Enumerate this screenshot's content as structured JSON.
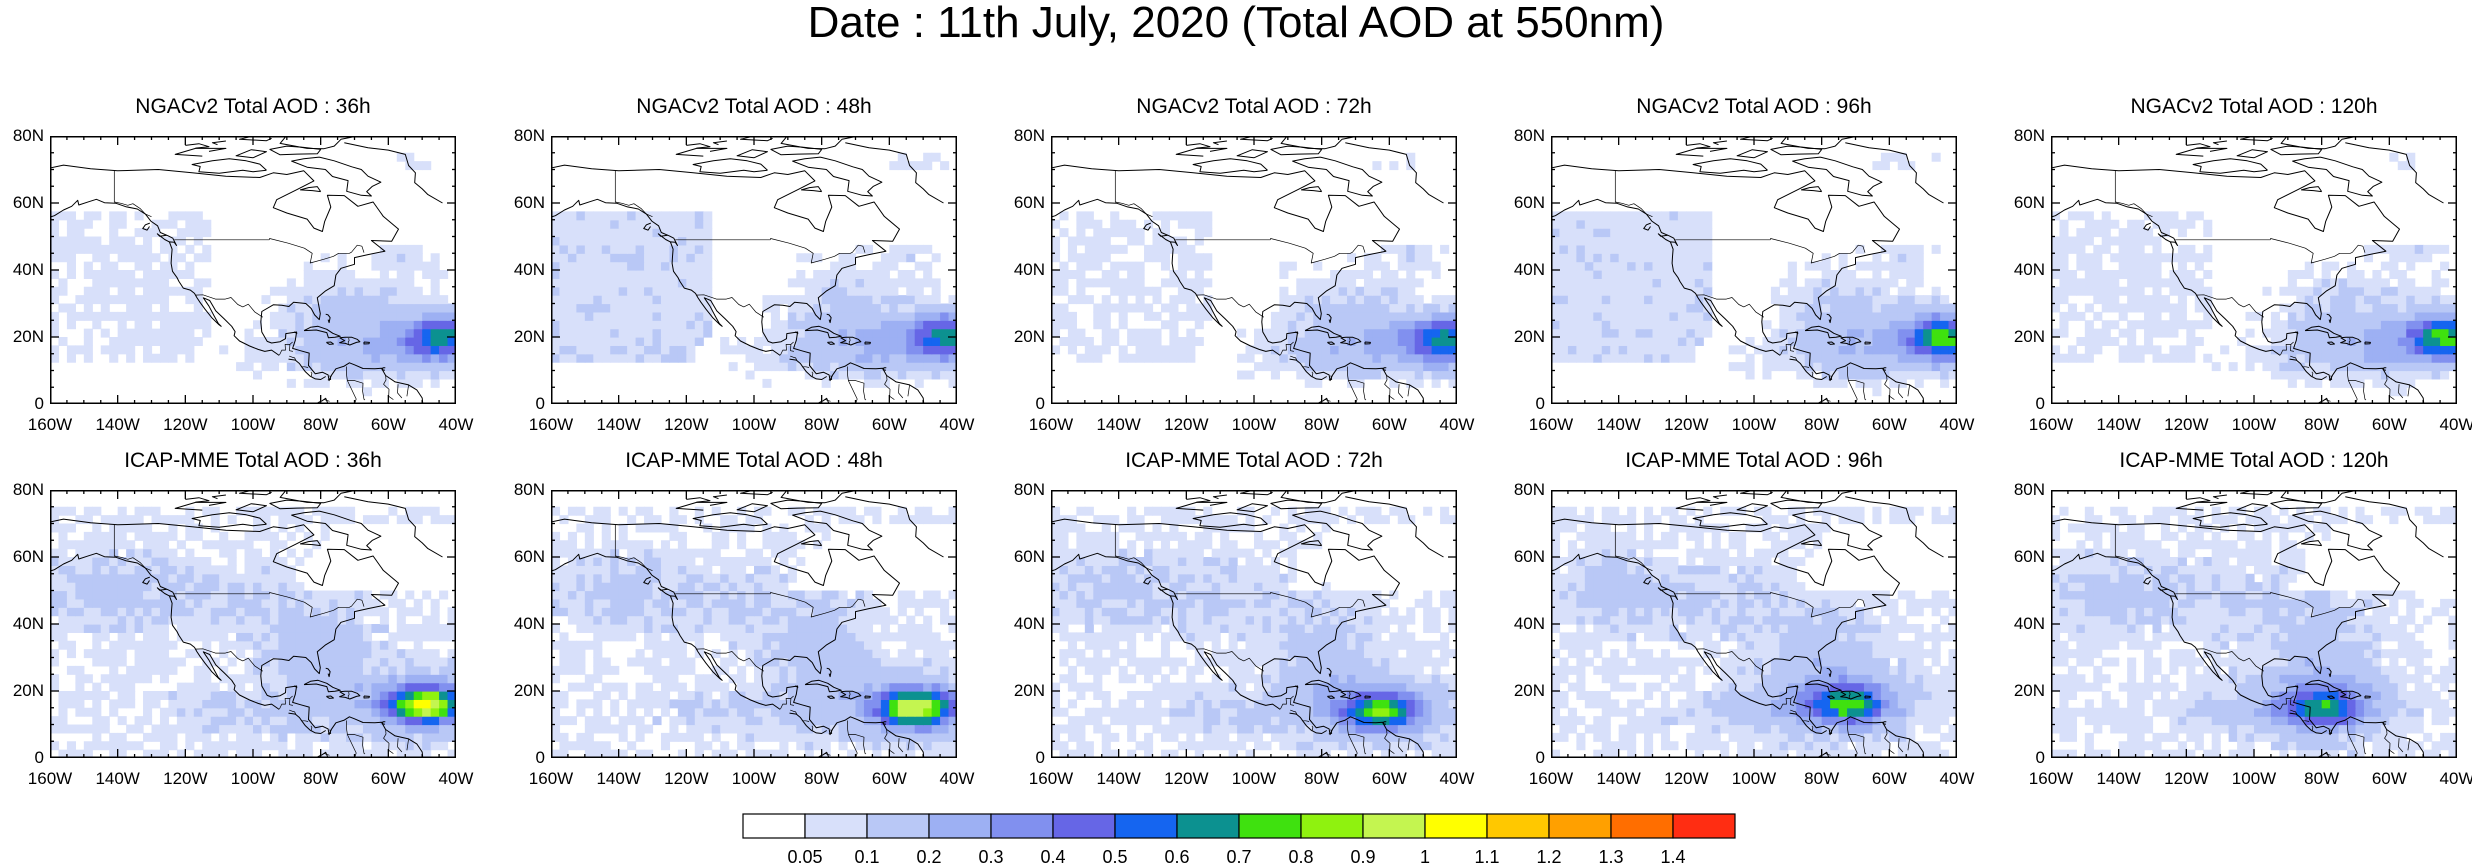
{
  "title": "Date : 11th July, 2020 (Total AOD at 550nm)",
  "lat_ticks": [
    "80N",
    "60N",
    "40N",
    "20N",
    "0"
  ],
  "lon_ticks": [
    "160W",
    "140W",
    "120W",
    "100W",
    "80W",
    "60W",
    "40W"
  ],
  "map_extent": {
    "lon": [
      -160,
      -40
    ],
    "lat": [
      0,
      80
    ]
  },
  "rows": [
    {
      "model": "NGACv2",
      "panels": [
        {
          "title": "NGACv2 Total AOD : 36h",
          "lead_hours": 36,
          "peak_aod": 0.7,
          "peak_center": [
            -42,
            20
          ]
        },
        {
          "title": "NGACv2 Total AOD : 48h",
          "lead_hours": 48,
          "peak_aod": 0.7,
          "peak_center": [
            -41,
            20
          ]
        },
        {
          "title": "NGACv2 Total AOD : 72h",
          "lead_hours": 72,
          "peak_aod": 0.7,
          "peak_center": [
            -42,
            19
          ]
        },
        {
          "title": "NGACv2 Total AOD : 96h",
          "lead_hours": 96,
          "peak_aod": 0.8,
          "peak_center": [
            -42,
            20
          ]
        },
        {
          "title": "NGACv2 Total AOD : 120h",
          "lead_hours": 120,
          "peak_aod": 0.8,
          "peak_center": [
            -42,
            20
          ]
        }
      ]
    },
    {
      "model": "ICAP-MME",
      "panels": [
        {
          "title": "ICAP-MME Total AOD : 36h",
          "lead_hours": 36,
          "peak_aod": 0.9,
          "peak_center": [
            -49,
            16
          ]
        },
        {
          "title": "ICAP-MME Total AOD : 48h",
          "lead_hours": 48,
          "peak_aod": 0.9,
          "peak_center": [
            -52,
            15
          ]
        },
        {
          "title": "ICAP-MME Total AOD : 72h",
          "lead_hours": 72,
          "peak_aod": 0.7,
          "peak_center": [
            -62,
            14
          ]
        },
        {
          "title": "ICAP-MME Total AOD : 96h",
          "lead_hours": 96,
          "peak_aod": 0.6,
          "peak_center": [
            -72,
            16
          ]
        },
        {
          "title": "ICAP-MME Total AOD : 120h",
          "lead_hours": 120,
          "peak_aod": 0.5,
          "peak_center": [
            -79,
            15
          ]
        }
      ]
    }
  ],
  "colorbar": {
    "labels": [
      "0.05",
      "0.1",
      "0.2",
      "0.3",
      "0.4",
      "0.5",
      "0.6",
      "0.7",
      "0.8",
      "0.9",
      "1",
      "1.1",
      "1.2",
      "1.3",
      "1.4"
    ],
    "colors": [
      "#ffffff",
      "#d8e0fa",
      "#b9c8f6",
      "#9db0f3",
      "#8190ef",
      "#6666e6",
      "#1565f0",
      "#0c9190",
      "#3fe10f",
      "#8ff20f",
      "#c4f550",
      "#ffff00",
      "#ffc800",
      "#ffa000",
      "#ff6e00",
      "#ff2d12"
    ]
  }
}
